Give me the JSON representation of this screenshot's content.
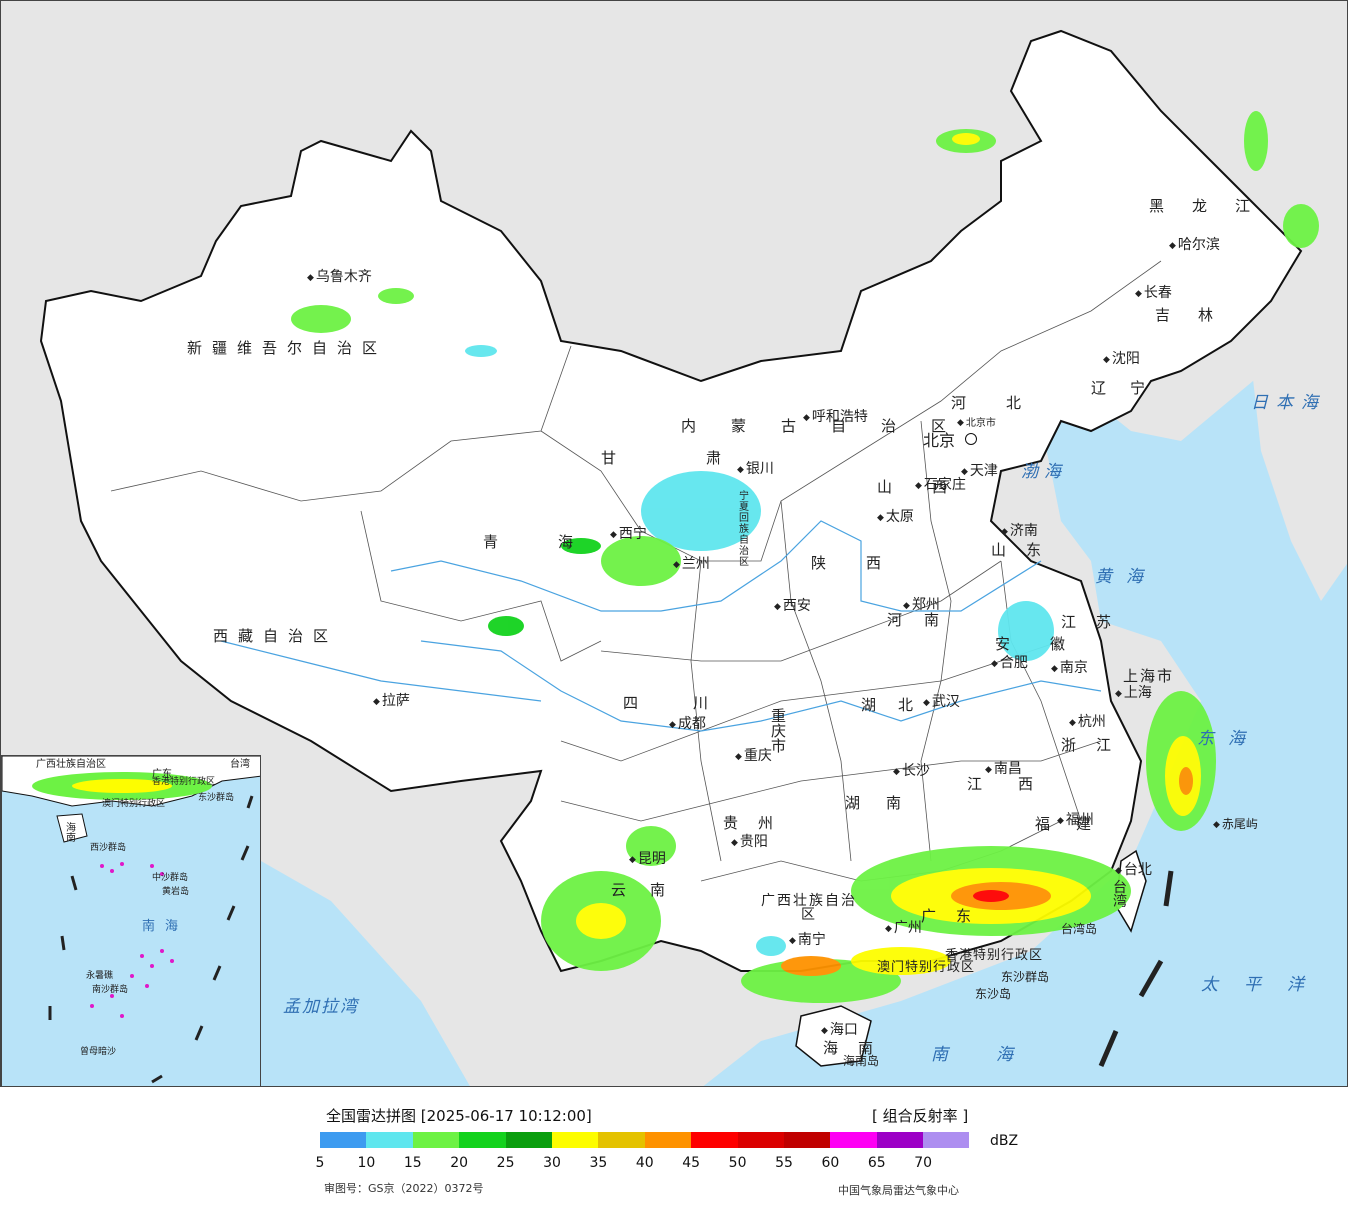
{
  "map": {
    "places": [
      {
        "name": "乌鲁木齐",
        "dot": "after"
      },
      {
        "name": "呼和浩特",
        "dot": "after"
      },
      {
        "name": "北京",
        "dot": "capital"
      },
      {
        "name": "天津",
        "dot": "after"
      },
      {
        "name": "石家庄",
        "dot": "below"
      },
      {
        "name": "太原",
        "dot": "above"
      },
      {
        "name": "济南",
        "dot": "before"
      },
      {
        "name": "银川",
        "dot": "below"
      },
      {
        "name": "西宁",
        "dot": "after"
      },
      {
        "name": "兰州",
        "dot": "before"
      },
      {
        "name": "西安",
        "dot": "after"
      },
      {
        "name": "郑州",
        "dot": "below"
      },
      {
        "name": "合肥",
        "dot": "below"
      },
      {
        "name": "南京",
        "dot": "before"
      },
      {
        "name": "上海",
        "dot": "before"
      },
      {
        "name": "杭州",
        "dot": "above"
      },
      {
        "name": "武汉",
        "dot": "before"
      },
      {
        "name": "成都",
        "dot": "above"
      },
      {
        "name": "重庆",
        "dot": "before"
      },
      {
        "name": "长沙",
        "dot": "below"
      },
      {
        "name": "南昌",
        "dot": "before"
      },
      {
        "name": "福州",
        "dot": "below"
      },
      {
        "name": "贵阳",
        "dot": "above"
      },
      {
        "name": "昆明",
        "dot": "below"
      },
      {
        "name": "南宁",
        "dot": "before"
      },
      {
        "name": "广州",
        "dot": "after"
      },
      {
        "name": "拉萨",
        "dot": "before"
      },
      {
        "name": "沈阳",
        "dot": "below"
      },
      {
        "name": "长春",
        "dot": "below"
      },
      {
        "name": "哈尔滨",
        "dot": "before"
      },
      {
        "name": "台北",
        "dot": "above"
      },
      {
        "name": "海口",
        "dot": "above"
      },
      {
        "name": "赤尾屿",
        "dot": "before"
      },
      {
        "name": "台湾岛",
        "dot": "none"
      },
      {
        "name": "海南岛",
        "dot": "none"
      },
      {
        "name": "东沙群岛",
        "dot": "none"
      },
      {
        "name": "东沙岛",
        "dot": "none"
      },
      {
        "name": "北京市",
        "dot": "none"
      }
    ],
    "provinces": [
      "新疆维吾尔自治区",
      "西藏自治区",
      "青海",
      "甘肃",
      "四川",
      "云南",
      "内蒙古自治区",
      "黑龙江",
      "吉林",
      "辽宁",
      "河北",
      "山西",
      "陕西",
      "河南",
      "山东",
      "江苏",
      "安徽",
      "湖北",
      "湖南",
      "江西",
      "浙江",
      "福建",
      "贵州",
      "广西壮族自治区",
      "广东",
      "海南",
      "台湾",
      "重庆市",
      "上海市",
      "宁夏回族自治区",
      "香港特别行政区",
      "澳门特别行政区"
    ],
    "seas": [
      "日本海",
      "渤海",
      "黄海",
      "东海",
      "太平洋",
      "南海",
      "孟加拉湾"
    ],
    "inset": {
      "labels": [
        "广西壮族自治区",
        "广东",
        "台湾",
        "香港特别行政区",
        "澳门特别行政区",
        "东沙群岛",
        "海南",
        "西沙群岛",
        "中沙群岛",
        "黄岩岛",
        "南海",
        "南沙群岛",
        "永暑礁",
        "曾母暗沙"
      ]
    },
    "colors": {
      "land": "#ffffff",
      "neighbor_land": "#e6e6e6",
      "water": "#b8e3f8",
      "border": "#111111",
      "river": "#4aa3e0"
    }
  },
  "legend": {
    "title": "全国雷达拼图 [2025-06-17 10:12:00]",
    "product": "[ 组合反射率 ]",
    "unit": "dBZ",
    "ticks": [
      "5",
      "10",
      "15",
      "20",
      "25",
      "30",
      "35",
      "40",
      "45",
      "50",
      "55",
      "60",
      "65",
      "70"
    ],
    "colors": [
      "#3d9bf0",
      "#5fe6ee",
      "#6df244",
      "#13d21d",
      "#0a9e0e",
      "#fdfd00",
      "#e4c200",
      "#fe9200",
      "#fe0000",
      "#db0000",
      "#c00000",
      "#fe00f4",
      "#9c00c6",
      "#ad8ef0"
    ],
    "approval": "审图号：GS京（2022）0372号",
    "source": "中国气象局雷达气象中心"
  }
}
